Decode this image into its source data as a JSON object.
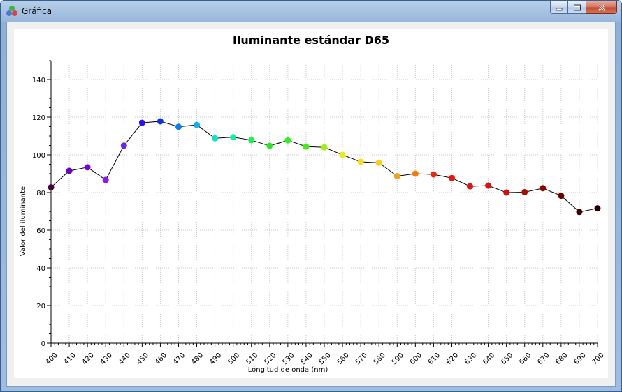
{
  "window": {
    "title": "Gráfica",
    "minimize_icon": "minimize-icon",
    "maximize_icon": "maximize-icon",
    "close_icon": "close-icon"
  },
  "chart_data": {
    "type": "line",
    "title": "Iluminante estándar D65",
    "xlabel": "Longitud de onda (nm)",
    "ylabel": "Valor del iluminante",
    "xlim": [
      400,
      700
    ],
    "ylim": [
      0,
      150
    ],
    "grid": true,
    "x_ticks": [
      400,
      410,
      420,
      430,
      440,
      450,
      460,
      470,
      480,
      490,
      500,
      510,
      520,
      530,
      540,
      550,
      560,
      570,
      580,
      590,
      600,
      610,
      620,
      630,
      640,
      650,
      660,
      670,
      680,
      690,
      700
    ],
    "y_ticks": [
      0,
      20,
      40,
      60,
      80,
      100,
      120,
      140
    ],
    "x": [
      400,
      410,
      420,
      430,
      440,
      450,
      460,
      470,
      480,
      490,
      500,
      510,
      520,
      530,
      540,
      550,
      560,
      570,
      580,
      590,
      600,
      610,
      620,
      630,
      640,
      650,
      660,
      670,
      680,
      690,
      700
    ],
    "y": [
      82.8,
      91.5,
      93.4,
      86.7,
      104.9,
      117.0,
      117.8,
      114.9,
      115.9,
      108.8,
      109.4,
      107.8,
      104.8,
      107.7,
      104.4,
      104.0,
      100.0,
      96.3,
      95.8,
      88.7,
      90.0,
      89.6,
      87.7,
      83.3,
      83.7,
      80.0,
      80.2,
      82.3,
      78.3,
      69.7,
      71.6
    ],
    "marker_colors": [
      "#480038",
      "#6a00c8",
      "#7a00e8",
      "#8a16f0",
      "#6a24f0",
      "#2a10f8",
      "#0a30f0",
      "#0a80f0",
      "#10b0f0",
      "#10e0c0",
      "#10f0a0",
      "#20f050",
      "#28e820",
      "#30f020",
      "#40f010",
      "#a0f010",
      "#e6f018",
      "#f8e010",
      "#fbd010",
      "#f8a010",
      "#f87808",
      "#f02808",
      "#f01010",
      "#e81010",
      "#e01010",
      "#e00808",
      "#b00808",
      "#900000",
      "#700000",
      "#400000",
      "#2a0000"
    ]
  }
}
